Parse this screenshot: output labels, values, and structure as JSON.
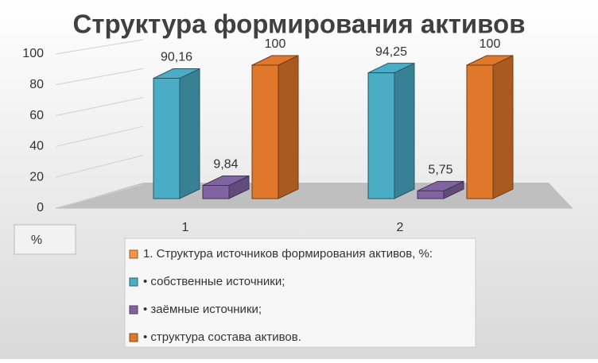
{
  "chart_data": {
    "type": "bar3d",
    "title": "Структура формирования активов",
    "categories": [
      "1",
      "2"
    ],
    "series": [
      {
        "name": "1. Структура источников формирования активов, %:",
        "color": "#f79646",
        "values": [
          null,
          null
        ]
      },
      {
        "name": "• собственные источники;",
        "color": "#4bacc6",
        "values": [
          90.16,
          94.25
        ],
        "value_labels": [
          "90,16",
          "94,25"
        ]
      },
      {
        "name": "• заёмные источники;",
        "color": "#8064a2",
        "values": [
          9.84,
          5.75
        ],
        "value_labels": [
          "9,84",
          "5,75"
        ]
      },
      {
        "name": "• структура состава активов.",
        "color": "#e0782c",
        "values": [
          100,
          100
        ]
      }
    ],
    "ylabel": "%",
    "ylim": [
      0,
      100
    ],
    "yticks": [
      0,
      20,
      40,
      60,
      80,
      100
    ],
    "grid": true
  }
}
